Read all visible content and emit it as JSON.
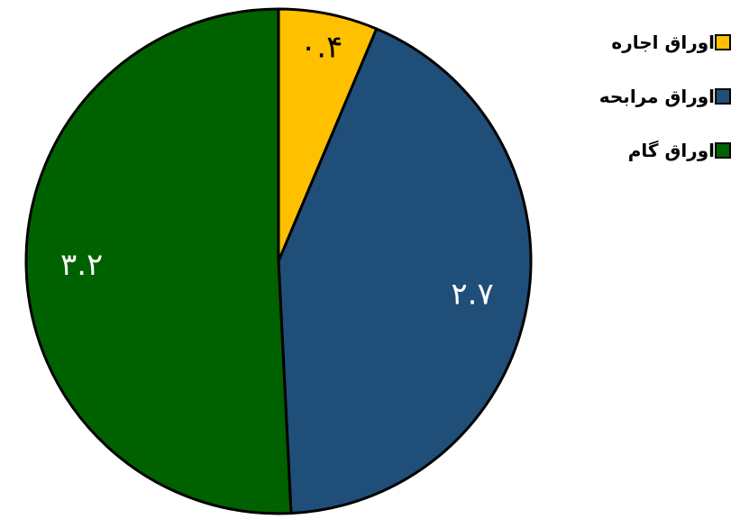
{
  "chart_data": {
    "type": "pie",
    "categories": [
      "اوراق اجاره",
      "اوراق مرابحه",
      "اوراق گام"
    ],
    "values": [
      0.4,
      2.7,
      3.2
    ],
    "value_labels": [
      "۰.۴",
      "۲.۷",
      "۳.۲"
    ],
    "colors": [
      "#FFC000",
      "#1F4E79",
      "#006100"
    ],
    "label_colors": [
      "#000000",
      "#ffffff",
      "#ffffff"
    ],
    "start_angle_deg": 0,
    "direction": "clockwise",
    "legend_position": "top-right",
    "title": ""
  },
  "legend": {
    "items": [
      {
        "label": "اوراق اجاره",
        "color": "#FFC000"
      },
      {
        "label": "اوراق مرابحه",
        "color": "#1F4E79"
      },
      {
        "label": "اوراق گام",
        "color": "#006100"
      }
    ]
  }
}
